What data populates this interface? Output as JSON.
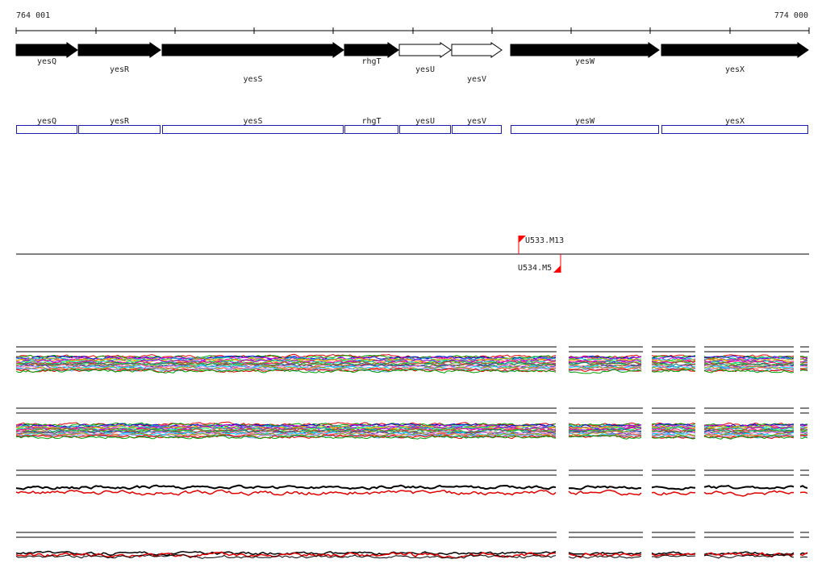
{
  "coords": {
    "start": "764 001",
    "end": "774 000"
  },
  "genes": [
    {
      "name": "yesQ",
      "filled": true
    },
    {
      "name": "yesR",
      "filled": true
    },
    {
      "name": "yesS",
      "filled": true
    },
    {
      "name": "rhgT",
      "filled": true
    },
    {
      "name": "yesU",
      "filled": false
    },
    {
      "name": "yesV",
      "filled": false
    },
    {
      "name": "yesW",
      "filled": true
    },
    {
      "name": "yesX",
      "filled": true
    }
  ],
  "features": [
    {
      "name": "U533.M13",
      "strand": "+"
    },
    {
      "name": "U534.M5",
      "strand": "-"
    }
  ],
  "colors": {
    "gene_fill": "#000000",
    "gene_box": "#1c1cb4",
    "feature_marker": "#ff0000",
    "track_line": "#000000",
    "trace_secondary": "#e00000"
  }
}
